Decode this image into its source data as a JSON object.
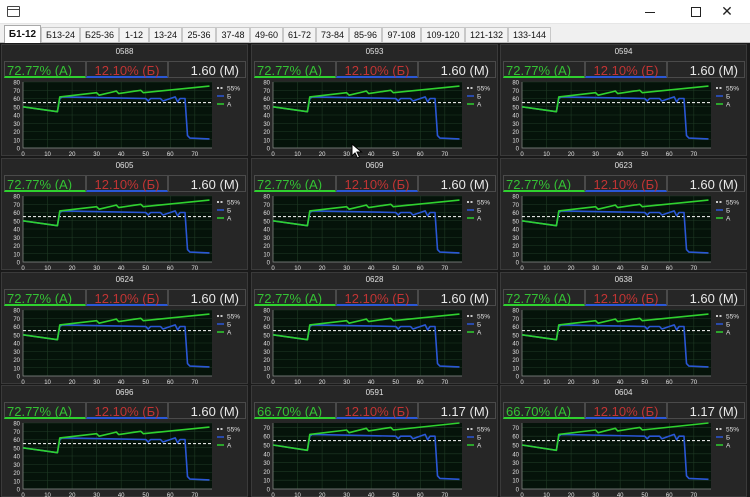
{
  "window": {
    "title": ""
  },
  "controls": {
    "minimize_icon": "minimize-icon",
    "maximize_icon": "maximize-icon",
    "close_icon": "close-icon",
    "close_glyph": "✕"
  },
  "tabs": [
    {
      "label": "Б1-12",
      "active": true
    },
    {
      "label": "Б13-24"
    },
    {
      "label": "Б25-36"
    },
    {
      "label": "1-12"
    },
    {
      "label": "13-24"
    },
    {
      "label": "25-36"
    },
    {
      "label": "37-48"
    },
    {
      "label": "49-60"
    },
    {
      "label": "61-72"
    },
    {
      "label": "73-84"
    },
    {
      "label": "85-96"
    },
    {
      "label": "97-108"
    },
    {
      "label": "109-120"
    },
    {
      "label": "121-132"
    },
    {
      "label": "133-144"
    }
  ],
  "legend": {
    "ref": "55%",
    "b": "Б",
    "a": "А"
  },
  "colors": {
    "a": "#2fd12f",
    "b": "#2a57d6",
    "ref": "#ffffff",
    "stat_a": "#34c234",
    "stat_b": "#c23434"
  },
  "panels": [
    {
      "id": "0588",
      "a": "72.77% (А)",
      "b": "12.10% (Б)",
      "m": "1.60 (М)",
      "profile": 1
    },
    {
      "id": "0593",
      "a": "72.77% (А)",
      "b": "12.10% (Б)",
      "m": "1.60 (М)",
      "profile": 1
    },
    {
      "id": "0594",
      "a": "72.77% (А)",
      "b": "12.10% (Б)",
      "m": "1.60 (М)",
      "profile": 1
    },
    {
      "id": "0605",
      "a": "72.77% (А)",
      "b": "12.10% (Б)",
      "m": "1.60 (М)",
      "profile": 1
    },
    {
      "id": "0609",
      "a": "72.77% (А)",
      "b": "12.10% (Б)",
      "m": "1.60 (М)",
      "profile": 1
    },
    {
      "id": "0623",
      "a": "72.77% (А)",
      "b": "12.10% (Б)",
      "m": "1.60 (М)",
      "profile": 1
    },
    {
      "id": "0624",
      "a": "72.77% (А)",
      "b": "12.10% (Б)",
      "m": "1.60 (М)",
      "profile": 1
    },
    {
      "id": "0628",
      "a": "72.77% (А)",
      "b": "12.10% (Б)",
      "m": "1.60 (М)",
      "profile": 1
    },
    {
      "id": "0638",
      "a": "72.77% (А)",
      "b": "12.10% (Б)",
      "m": "1.60 (М)",
      "profile": 1
    },
    {
      "id": "0696",
      "a": "72.77% (А)",
      "b": "12.10% (Б)",
      "m": "1.60 (М)",
      "profile": 1
    },
    {
      "id": "0591",
      "a": "66.70% (А)",
      "b": "12.10% (Б)",
      "m": "1.17 (М)",
      "profile": 2
    },
    {
      "id": "0604",
      "a": "66.70% (А)",
      "b": "12.10% (Б)",
      "m": "1.17 (М)",
      "profile": 2
    }
  ],
  "chart_data": {
    "type": "line",
    "xticks": [
      0,
      10,
      20,
      30,
      40,
      50,
      60,
      70
    ],
    "xlim": [
      0,
      77
    ],
    "profiles": {
      "1": {
        "yticks": [
          0,
          10,
          20,
          30,
          40,
          50,
          60,
          70,
          80
        ],
        "ylim": [
          0,
          80
        ],
        "reference": 55,
        "series": [
          {
            "legend": "Б",
            "x": [
              0,
              14,
              15,
              16,
              50,
              51,
              52,
              56,
              57,
              62,
              63,
              64,
              66,
              67,
              68,
              76
            ],
            "y": [
              50,
              44,
              60,
              62,
              60,
              57,
              60,
              60,
              57,
              62,
              56,
              60,
              60,
              15,
              12,
              11
            ]
          },
          {
            "legend": "А",
            "x": [
              0,
              14,
              15,
              30,
              31,
              38,
              39,
              48,
              49,
              76
            ],
            "y": [
              50,
              44,
              62,
              67,
              64,
              69,
              66,
              70,
              67,
              75
            ]
          }
        ]
      },
      "2": {
        "yticks": [
          0,
          10,
          20,
          30,
          40,
          50,
          60,
          70
        ],
        "ylim": [
          0,
          75
        ],
        "reference": 55,
        "series": [
          {
            "legend": "Б",
            "x": [
              0,
              14,
              15,
              16,
              50,
              51,
              52,
              56,
              57,
              62,
              63,
              64,
              66,
              67,
              68,
              76
            ],
            "y": [
              50,
              44,
              60,
              62,
              60,
              57,
              60,
              60,
              57,
              62,
              56,
              60,
              60,
              15,
              12,
              11
            ]
          },
          {
            "legend": "А",
            "x": [
              0,
              14,
              15,
              30,
              31,
              38,
              39,
              48,
              49,
              76
            ],
            "y": [
              50,
              44,
              62,
              67,
              64,
              69,
              66,
              70,
              67,
              75
            ]
          }
        ]
      }
    }
  }
}
